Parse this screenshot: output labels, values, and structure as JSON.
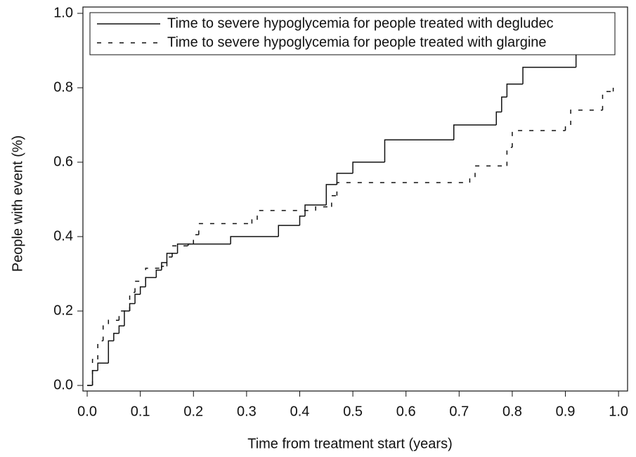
{
  "chart_data": {
    "type": "step",
    "xlabel": "Time from treatment start (years)",
    "ylabel": "People with event (%)",
    "xlim": [
      -0.008,
      1.017
    ],
    "ylim": [
      -0.015,
      1.017
    ],
    "xticks": [
      {
        "value": 0,
        "label": "0.0"
      },
      0.1,
      0.2,
      0.3,
      0.4,
      0.5,
      0.6,
      0.7,
      0.8,
      0.9,
      {
        "value": 1,
        "label": "1.0"
      }
    ],
    "yticks": [
      {
        "value": 0,
        "label": "0.0"
      },
      0.2,
      0.4,
      0.6,
      0.8,
      {
        "value": 1,
        "label": "1.0"
      }
    ],
    "legend": "upper left",
    "series": [
      {
        "name": "Time to severe hypoglycemia for people treated with degludec",
        "color": "#111111",
        "dash": "solid",
        "x": [
          0,
          0.01,
          0.02,
          0.04,
          0.05,
          0.06,
          0.07,
          0.08,
          0.09,
          0.1,
          0.11,
          0.13,
          0.14,
          0.15,
          0.17,
          0.27,
          0.36,
          0.4,
          0.41,
          0.45,
          0.47,
          0.5,
          0.56,
          0.69,
          0.77,
          0.78,
          0.79,
          0.82,
          0.92,
          0.96,
          0.99
        ],
        "values": [
          0,
          0.04,
          0.06,
          0.12,
          0.14,
          0.16,
          0.2,
          0.22,
          0.245,
          0.265,
          0.29,
          0.31,
          0.33,
          0.355,
          0.38,
          0.4,
          0.43,
          0.455,
          0.485,
          0.54,
          0.57,
          0.6,
          0.66,
          0.7,
          0.735,
          0.775,
          0.81,
          0.855,
          0.9,
          0.945,
          1.0
        ]
      },
      {
        "name": "Time to severe hypoglycemia for people treated with glargine",
        "color": "#111111",
        "dash": "dashed",
        "x": [
          0,
          0.01,
          0.02,
          0.03,
          0.04,
          0.06,
          0.08,
          0.09,
          0.11,
          0.14,
          0.15,
          0.16,
          0.19,
          0.2,
          0.21,
          0.31,
          0.32,
          0.43,
          0.46,
          0.47,
          0.72,
          0.73,
          0.79,
          0.8,
          0.9,
          0.91,
          0.97,
          0.99
        ],
        "values": [
          0,
          0.07,
          0.12,
          0.165,
          0.175,
          0.2,
          0.25,
          0.28,
          0.315,
          0.32,
          0.345,
          0.375,
          0.38,
          0.405,
          0.435,
          0.445,
          0.47,
          0.48,
          0.51,
          0.545,
          0.56,
          0.59,
          0.64,
          0.685,
          0.7,
          0.74,
          0.79,
          0.8
        ]
      }
    ]
  }
}
